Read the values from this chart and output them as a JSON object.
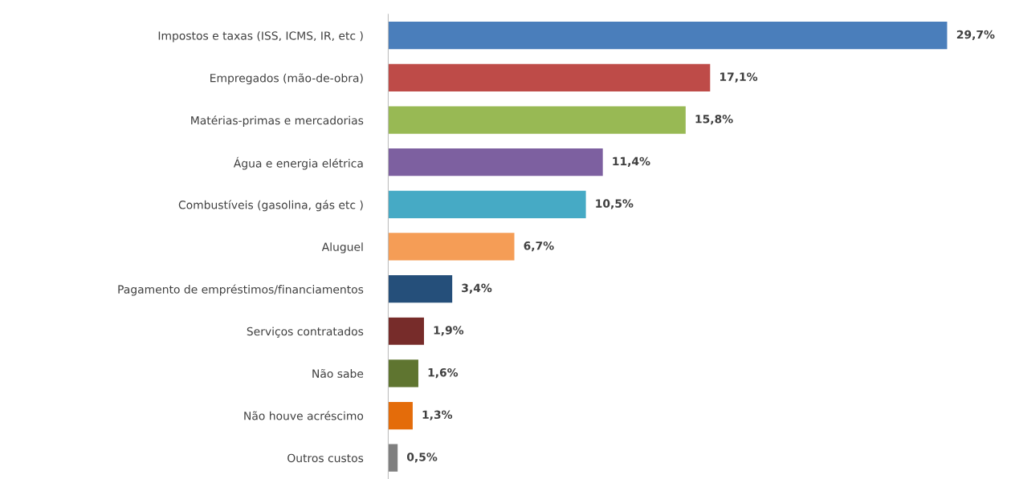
{
  "chart_data": {
    "type": "bar",
    "orientation": "horizontal",
    "categories": [
      "Impostos e taxas (ISS, ICMS, IR, etc )",
      "Empregados (mão-de-obra)",
      "Matérias-primas e mercadorias",
      "Água e energia elétrica",
      "Combustíveis (gasolina, gás etc )",
      "Aluguel",
      "Pagamento de empréstimos/financiamentos",
      "Serviços contratados",
      "Não sabe",
      "Não houve acréscimo",
      "Outros custos"
    ],
    "values": [
      29.7,
      17.1,
      15.8,
      11.4,
      10.5,
      6.7,
      3.4,
      1.9,
      1.6,
      1.3,
      0.5
    ],
    "value_labels": [
      "29,7%",
      "17,1%",
      "15,8%",
      "11,4%",
      "10,5%",
      "6,7%",
      "3,4%",
      "1,9%",
      "1,6%",
      "1,3%",
      "0,5%"
    ],
    "colors": [
      "#4a7ebb",
      "#be4b48",
      "#98b954",
      "#7d60a0",
      "#46aac5",
      "#f59d56",
      "#254f7a",
      "#772c2a",
      "#5f7530",
      "#e46c0a",
      "#7f7f7f"
    ],
    "tick_labels": "y",
    "grid": false,
    "legend": false
  }
}
